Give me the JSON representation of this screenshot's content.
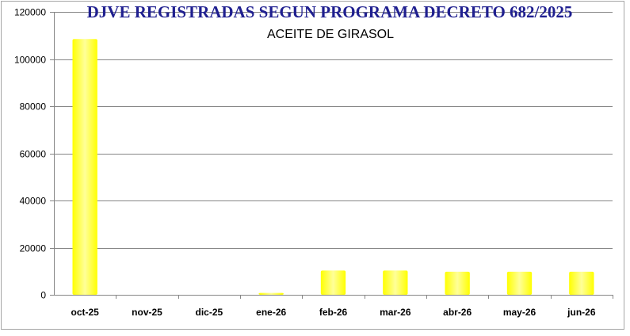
{
  "chart_data": {
    "type": "bar",
    "title": "DJVE REGISTRADAS SEGUN PROGRAMA DECRETO 682/2025",
    "subtitle": "ACEITE DE GIRASOL",
    "xlabel": "",
    "ylabel": "",
    "categories": [
      "oct-25",
      "nov-25",
      "dic-25",
      "ene-26",
      "feb-26",
      "mar-26",
      "abr-26",
      "may-26",
      "jun-26"
    ],
    "values": [
      108500,
      0,
      0,
      800,
      10300,
      10300,
      9800,
      9800,
      9800
    ],
    "ylim": [
      0,
      120000
    ],
    "yticks": [
      0,
      20000,
      40000,
      60000,
      80000,
      100000,
      120000
    ],
    "grid": true,
    "legend": "none",
    "colors": {
      "bar_fill": "#ffff00",
      "bar_highlight": "#ffff99",
      "title": "#1f1f8f",
      "grid": "#868686"
    }
  }
}
